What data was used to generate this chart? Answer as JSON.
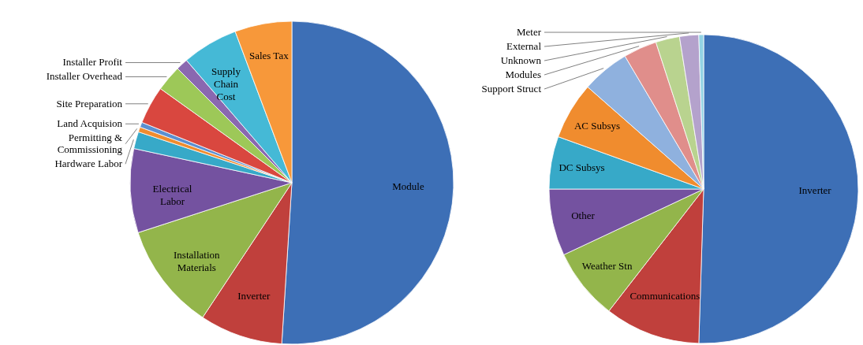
{
  "chart_data": [
    {
      "type": "pie",
      "categories": [
        "Module",
        "Inverter",
        "Installation Materials",
        "Electrical Labor",
        "Hardware Labor",
        "Permitting & Commissioning",
        "Land Acquision",
        "Site Preparation",
        "Installer Overhead",
        "Installer Profit",
        "Supply Chain Cost",
        "Sales Tax"
      ],
      "values": [
        51.0,
        8.3,
        10.7,
        8.4,
        1.7,
        0.5,
        0.5,
        3.8,
        2.6,
        1.2,
        5.6,
        5.7
      ],
      "colors": [
        "#3d6fb6",
        "#c0403c",
        "#93b54b",
        "#7452a0",
        "#37a9c8",
        "#f08c2e",
        "#5b8fd0",
        "#d9473f",
        "#9dc858",
        "#8a68b0",
        "#45b9d6",
        "#f7983a"
      ]
    },
    {
      "type": "pie",
      "categories": [
        "Inverter",
        "Communications",
        "Weather Stn",
        "Other",
        "DC Subsys",
        "AC Subsys",
        "Support Struct",
        "Modules",
        "Unknown",
        "External",
        "Meter"
      ],
      "values": [
        50.5,
        10,
        7.5,
        7,
        5.5,
        6,
        5.0,
        3.5,
        2.5,
        2,
        0.5
      ],
      "colors": [
        "#3d6fb6",
        "#c0403c",
        "#93b54b",
        "#7452a0",
        "#37a9c8",
        "#f08c2e",
        "#8fb1de",
        "#e08e8b",
        "#b9d38f",
        "#b4a2cc",
        "#93d3e4"
      ]
    }
  ]
}
